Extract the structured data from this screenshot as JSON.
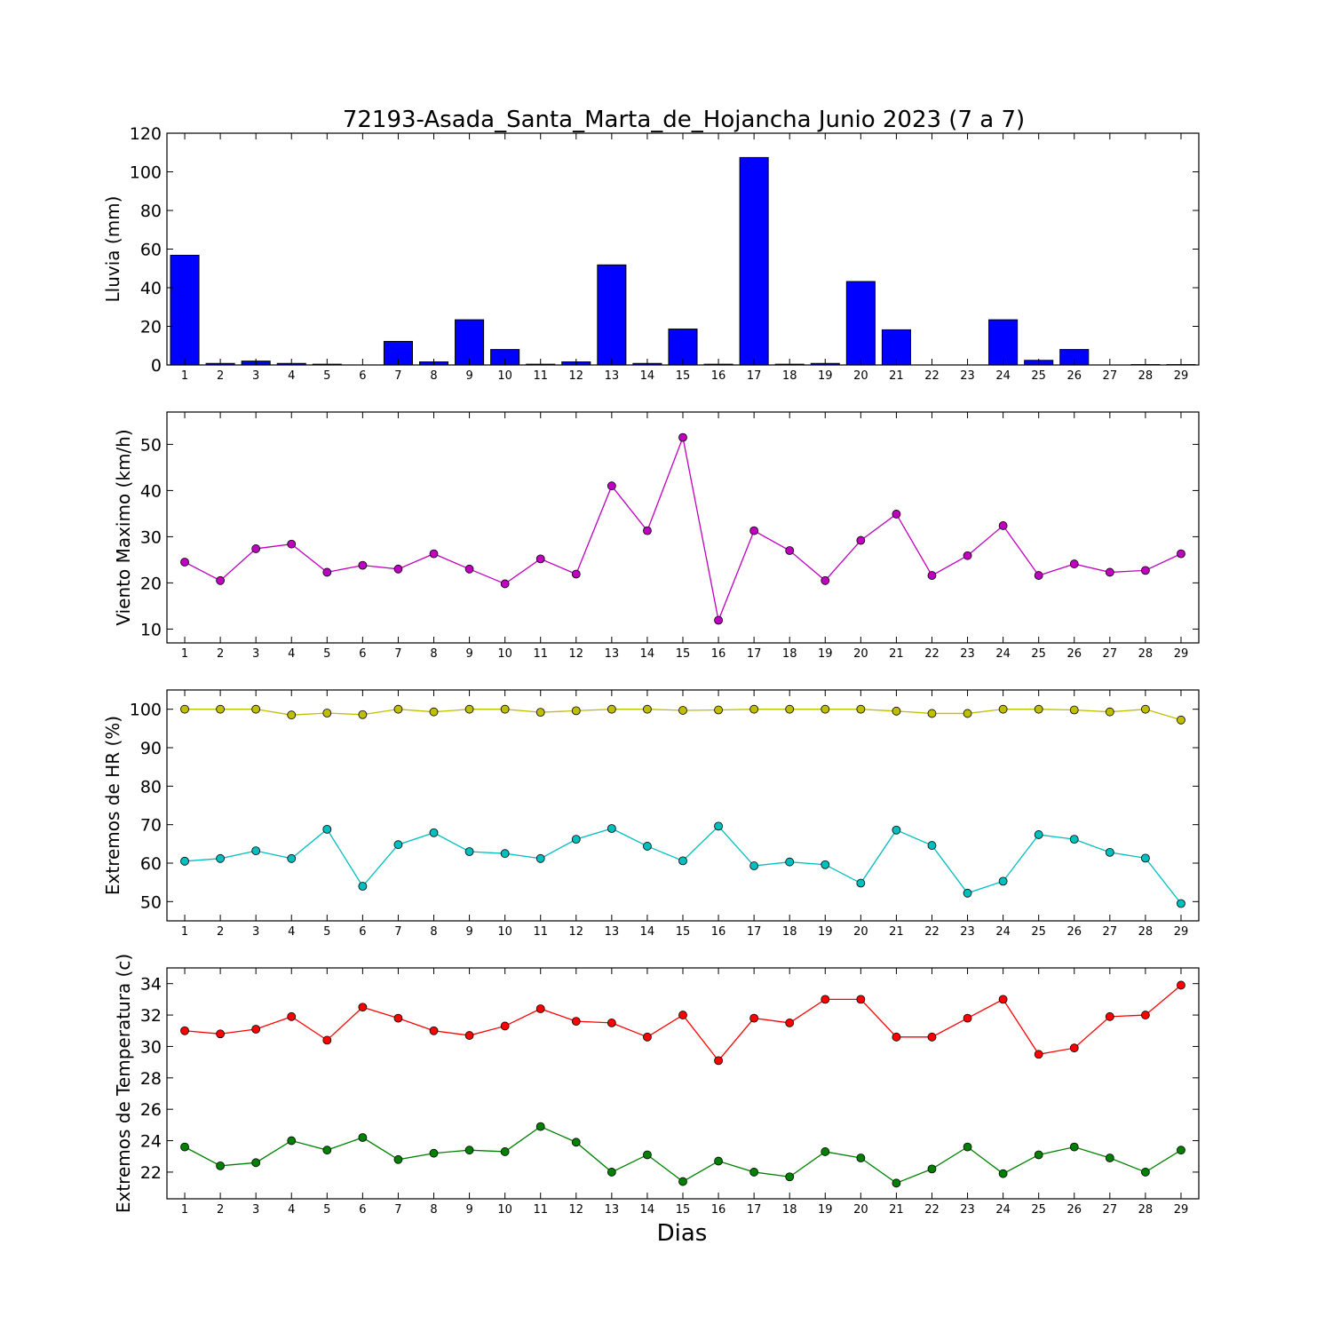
{
  "title": "72193-Asada_Santa_Marta_de_Hojancha Junio 2023  (7 a 7)",
  "xlabel": "Dias",
  "chart_data": [
    {
      "type": "bar",
      "ylabel": "Lluvia (mm)",
      "ylim": [
        0,
        120
      ],
      "yticks": [
        0,
        20,
        40,
        60,
        80,
        100,
        120
      ],
      "categories": [
        1,
        2,
        3,
        4,
        5,
        6,
        7,
        8,
        9,
        10,
        11,
        12,
        13,
        14,
        15,
        16,
        17,
        18,
        19,
        20,
        21,
        22,
        23,
        24,
        25,
        26,
        27,
        28,
        29
      ],
      "series": [
        {
          "color": "#0000ff",
          "values": [
            56.8,
            0.8,
            2.0,
            0.8,
            0.4,
            0,
            12.2,
            1.6,
            23.4,
            8.0,
            0.4,
            1.6,
            51.8,
            0.8,
            18.6,
            0.4,
            107.4,
            0.4,
            0.8,
            43.2,
            18.2,
            0,
            0,
            23.4,
            2.4,
            8.0,
            0,
            0.2,
            0.2
          ]
        }
      ]
    },
    {
      "type": "line",
      "ylabel": "Viento Maximo (km/h)",
      "ylim": [
        7,
        57
      ],
      "yticks": [
        10,
        20,
        30,
        40,
        50
      ],
      "x": [
        1,
        2,
        3,
        4,
        5,
        6,
        7,
        8,
        9,
        10,
        11,
        12,
        13,
        14,
        15,
        16,
        17,
        18,
        19,
        20,
        21,
        22,
        23,
        24,
        25,
        26,
        27,
        28,
        29
      ],
      "series": [
        {
          "color": "#bf00bf",
          "values": [
            24.5,
            20.5,
            27.4,
            28.4,
            22.3,
            23.8,
            23.0,
            26.3,
            23.0,
            19.8,
            25.2,
            21.9,
            41.0,
            31.3,
            51.5,
            11.9,
            31.3,
            27.0,
            20.5,
            29.2,
            34.9,
            21.6,
            25.9,
            32.4,
            21.6,
            24.1,
            22.3,
            22.7,
            26.3
          ]
        }
      ]
    },
    {
      "type": "line",
      "ylabel": "Extremos de HR (%)",
      "ylim": [
        45,
        105
      ],
      "yticks": [
        50,
        60,
        70,
        80,
        90,
        100
      ],
      "x": [
        1,
        2,
        3,
        4,
        5,
        6,
        7,
        8,
        9,
        10,
        11,
        12,
        13,
        14,
        15,
        16,
        17,
        18,
        19,
        20,
        21,
        22,
        23,
        24,
        25,
        26,
        27,
        28,
        29
      ],
      "series": [
        {
          "color": "#bfbf00",
          "values": [
            100,
            100,
            100,
            98.5,
            99.0,
            98.6,
            100,
            99.3,
            100,
            100,
            99.2,
            99.6,
            100,
            100,
            99.7,
            99.8,
            100,
            100,
            100,
            100,
            99.5,
            98.9,
            98.9,
            100,
            100,
            99.8,
            99.3,
            100,
            97.2
          ]
        },
        {
          "color": "#00bfbf",
          "values": [
            60.5,
            61.2,
            63.2,
            61.2,
            68.8,
            54.0,
            64.8,
            67.9,
            63.0,
            62.5,
            61.2,
            66.2,
            69.0,
            64.4,
            60.6,
            69.6,
            59.3,
            60.3,
            59.6,
            54.8,
            68.6,
            64.6,
            52.2,
            55.3,
            67.4,
            66.2,
            62.8,
            61.3,
            49.5
          ]
        }
      ]
    },
    {
      "type": "line",
      "ylabel": "Extremos de Temperatura (c)",
      "ylim": [
        20.3,
        35.0
      ],
      "yticks": [
        22,
        24,
        26,
        28,
        30,
        32,
        34
      ],
      "x": [
        1,
        2,
        3,
        4,
        5,
        6,
        7,
        8,
        9,
        10,
        11,
        12,
        13,
        14,
        15,
        16,
        17,
        18,
        19,
        20,
        21,
        22,
        23,
        24,
        25,
        26,
        27,
        28,
        29
      ],
      "series": [
        {
          "color": "#ff0000",
          "values": [
            31.0,
            30.8,
            31.1,
            31.9,
            30.4,
            32.5,
            31.8,
            31.0,
            30.7,
            31.3,
            32.4,
            31.6,
            31.5,
            30.6,
            32.0,
            29.1,
            31.8,
            31.5,
            33.0,
            33.0,
            30.6,
            30.6,
            31.8,
            33.0,
            29.5,
            29.9,
            31.9,
            32.0,
            33.9
          ]
        },
        {
          "color": "#008000",
          "values": [
            23.6,
            22.4,
            22.6,
            24.0,
            23.4,
            24.2,
            22.8,
            23.2,
            23.4,
            23.3,
            24.9,
            23.9,
            22.0,
            23.1,
            21.4,
            22.7,
            22.0,
            21.7,
            23.3,
            22.9,
            21.3,
            22.2,
            23.6,
            21.9,
            23.1,
            23.6,
            22.9,
            22.0,
            23.4
          ]
        }
      ]
    }
  ]
}
